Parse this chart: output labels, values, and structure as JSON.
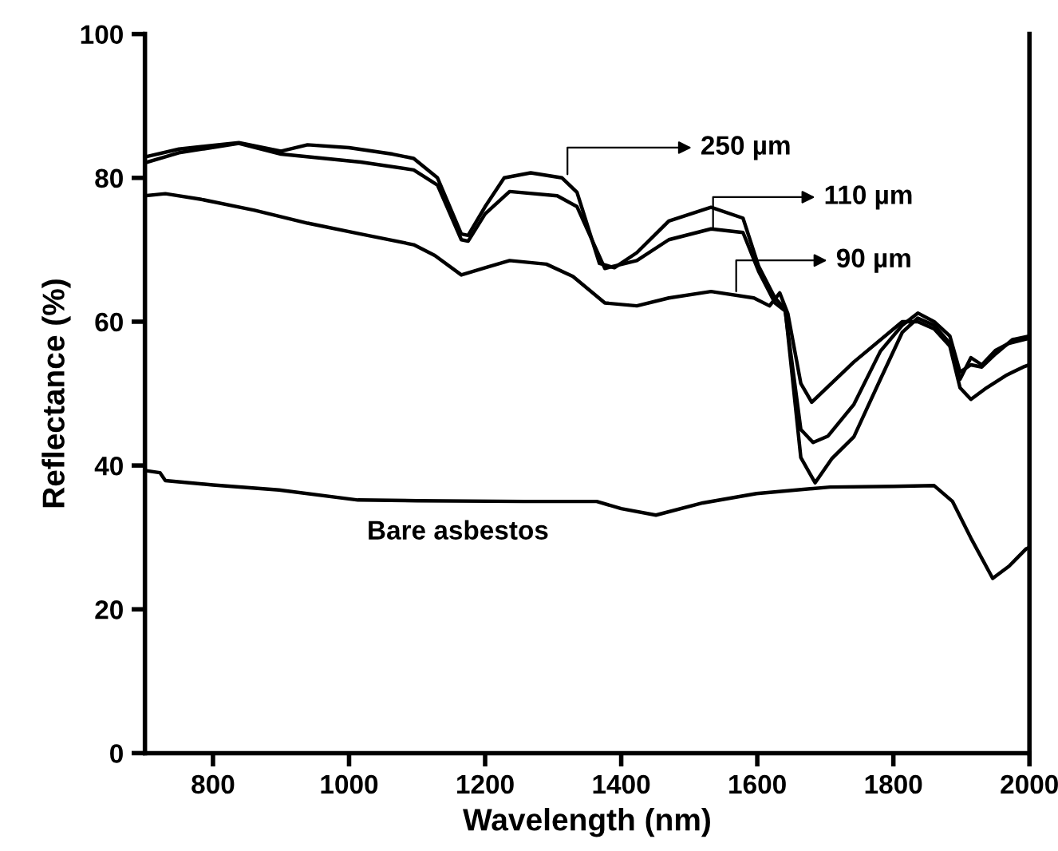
{
  "chart_data": {
    "type": "line",
    "xlabel": "Wavelength (nm)",
    "ylabel": "Reflectance (%)",
    "xlim": [
      700,
      2000
    ],
    "ylim": [
      0,
      100
    ],
    "xticks": [
      800,
      1000,
      1200,
      1400,
      1600,
      1800,
      2000
    ],
    "yticks": [
      0,
      20,
      40,
      60,
      80,
      100
    ],
    "grid": false,
    "legend": false,
    "marker": "none",
    "line_style": "solid",
    "series": [
      {
        "color": "#000000",
        "x": [
          700,
          750,
          838,
          900,
          939,
          1000,
          1064,
          1095,
          1130,
          1165,
          1175,
          1200,
          1228,
          1267,
          1313,
          1335,
          1368,
          1390,
          1423,
          1470,
          1532,
          1579,
          1602,
          1626,
          1641,
          1664,
          1685,
          1710,
          1742,
          1781,
          1813,
          1836,
          1860,
          1883,
          1898,
          1914,
          1930,
          1950,
          1970,
          2000
        ],
        "values": [
          82.9,
          84.0,
          84.9,
          83.7,
          84.6,
          84.2,
          83.3,
          82.7,
          80.0,
          72.2,
          72.0,
          76.0,
          80.0,
          80.7,
          80.0,
          78.0,
          68.1,
          67.5,
          69.6,
          74.0,
          75.9,
          74.4,
          67.7,
          63.3,
          61.8,
          41.1,
          37.6,
          41.0,
          44.0,
          52.0,
          58.5,
          60.5,
          59.5,
          57.0,
          52.0,
          55.0,
          54.0,
          56.0,
          57.0,
          57.7
        ]
      },
      {
        "color": "#000000",
        "x": [
          700,
          750,
          838,
          900,
          1017,
          1095,
          1130,
          1165,
          1175,
          1200,
          1236,
          1306,
          1335,
          1376,
          1423,
          1470,
          1532,
          1579,
          1602,
          1626,
          1641,
          1664,
          1682,
          1704,
          1742,
          1781,
          1813,
          1836,
          1860,
          1883,
          1898,
          1914,
          1930,
          1950,
          1975,
          2000
        ],
        "values": [
          82.1,
          83.5,
          84.8,
          83.3,
          82.2,
          81.1,
          79.0,
          71.4,
          71.2,
          75.0,
          78.1,
          77.5,
          76.0,
          67.4,
          68.5,
          71.4,
          72.9,
          72.4,
          67.0,
          62.6,
          61.5,
          45.0,
          43.2,
          44.1,
          48.5,
          55.9,
          59.5,
          61.2,
          60.0,
          58.0,
          53.0,
          54.0,
          53.7,
          55.5,
          57.5,
          58.0
        ]
      },
      {
        "color": "#000000",
        "x": [
          700,
          730,
          783,
          861,
          939,
          1017,
          1095,
          1126,
          1165,
          1200,
          1236,
          1290,
          1329,
          1376,
          1423,
          1470,
          1532,
          1595,
          1618,
          1633,
          1645,
          1664,
          1680,
          1742,
          1813,
          1836,
          1860,
          1883,
          1898,
          1914,
          1937,
          1965,
          1991,
          2000
        ],
        "values": [
          77.5,
          77.8,
          77.0,
          75.5,
          73.7,
          72.2,
          70.7,
          69.2,
          66.5,
          67.5,
          68.5,
          68.0,
          66.3,
          62.6,
          62.2,
          63.3,
          64.2,
          63.3,
          62.2,
          64.0,
          61.1,
          51.4,
          48.8,
          54.4,
          60.0,
          60.0,
          59.0,
          56.6,
          50.8,
          49.2,
          50.8,
          52.5,
          53.7,
          54.0
        ]
      },
      {
        "color": "#000000",
        "x": [
          700,
          722,
          730,
          800,
          897,
          1013,
          1100,
          1257,
          1364,
          1400,
          1451,
          1520,
          1599,
          1707,
          1800,
          1860,
          1887,
          1914,
          1946,
          1970,
          1995,
          2000
        ],
        "values": [
          39.3,
          39.0,
          37.9,
          37.3,
          36.6,
          35.2,
          35.1,
          35.0,
          35.0,
          34.0,
          33.1,
          34.8,
          36.1,
          37.0,
          37.1,
          37.2,
          35.0,
          29.9,
          24.3,
          26.0,
          28.4,
          28.6
        ]
      }
    ],
    "annotations": [
      {
        "text": "250 µm",
        "x": 1321,
        "y": 80.5
      },
      {
        "text": "110 µm",
        "x": 1535,
        "y": 73.0
      },
      {
        "text": "90 µm",
        "x": 1569,
        "y": 64.2
      },
      {
        "text": "Bare asbestos",
        "x": 1160,
        "y": 35.0
      }
    ]
  }
}
